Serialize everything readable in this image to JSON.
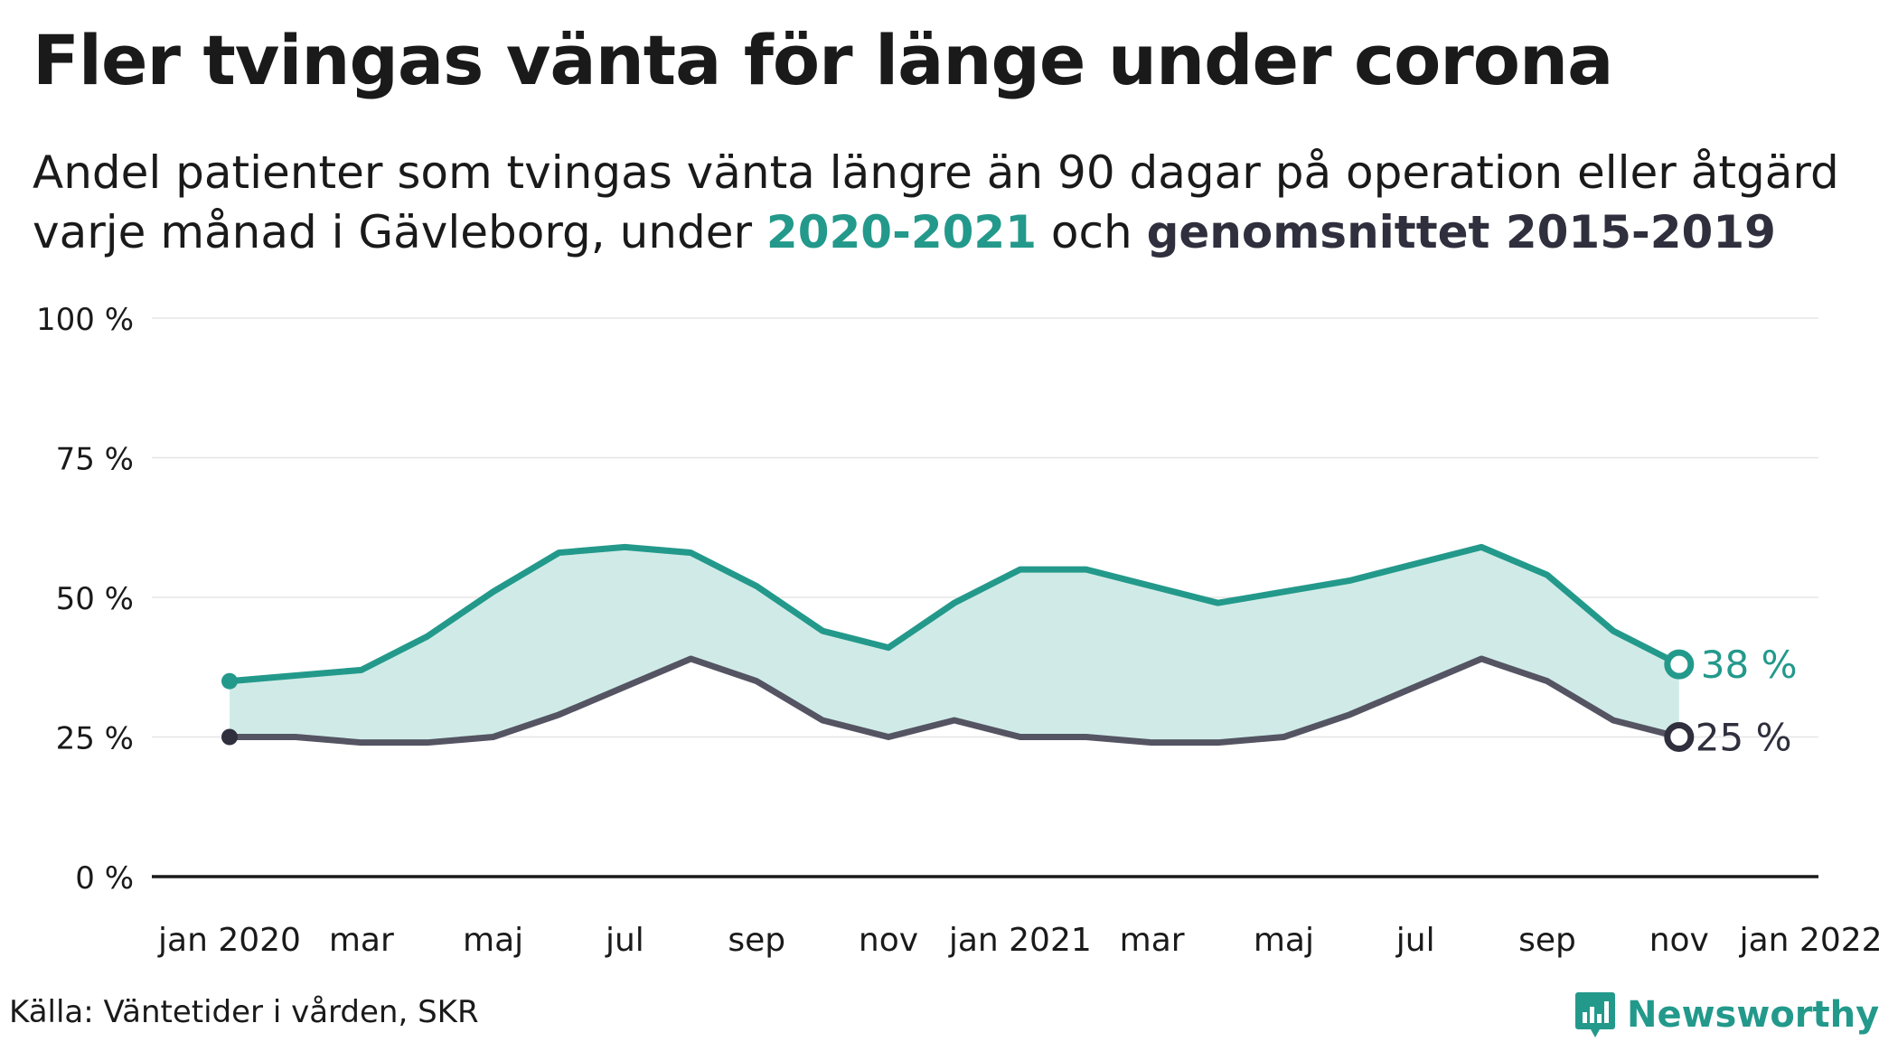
{
  "title": "Fler tvingas vänta för länge under corona",
  "subtitle": {
    "line1": "Andel patienter som tvingas vänta längre än 90 dagar på operation eller åtgärd",
    "line2_prefix": "varje månad i Gävleborg, under ",
    "line2_current": "2020-2021",
    "line2_mid": " och ",
    "line2_avg": "genomsnittet 2015-2019"
  },
  "colors": {
    "current": "#23998b",
    "average": "#545463",
    "band": "#d0ebe7",
    "grid": "#e6e6e6",
    "axis": "#1a1a1a"
  },
  "source": "Källa: Väntetider i vården, SKR",
  "brand": {
    "name": "Newsworthy",
    "icon": "newsworthy-logo-icon"
  },
  "chart_data": {
    "type": "line",
    "x_labels": [
      "jan 2020",
      "mar",
      "maj",
      "jul",
      "sep",
      "nov",
      "jan 2021",
      "mar",
      "maj",
      "jul",
      "sep",
      "nov",
      "jan 2022"
    ],
    "y_ticks": [
      "100 %",
      "75 %",
      "50 %",
      "25 %",
      "0 %"
    ],
    "ylim": [
      0,
      100
    ],
    "y_tick_values": [
      100,
      75,
      50,
      25,
      0
    ],
    "x_months": [
      "2020-01",
      "2020-02",
      "2020-03",
      "2020-04",
      "2020-05",
      "2020-06",
      "2020-07",
      "2020-08",
      "2020-09",
      "2020-10",
      "2020-11",
      "2020-12",
      "2021-01",
      "2021-02",
      "2021-03",
      "2021-04",
      "2021-05",
      "2021-06",
      "2021-07",
      "2021-08",
      "2021-09",
      "2021-10",
      "2021-11"
    ],
    "series": [
      {
        "name": "2020-2021",
        "values": [
          35,
          36,
          37,
          43,
          51,
          58,
          59,
          58,
          52,
          44,
          41,
          49,
          55,
          55,
          52,
          49,
          51,
          53,
          56,
          59,
          54,
          44,
          38
        ]
      },
      {
        "name": "genomsnittet 2015-2019",
        "values": [
          25,
          25,
          24,
          24,
          25,
          29,
          34,
          39,
          35,
          28,
          25,
          28,
          25,
          25,
          24,
          24,
          25,
          29,
          34,
          39,
          35,
          28,
          25
        ]
      }
    ],
    "end_labels": [
      "38 %",
      "25 %"
    ],
    "grid": true,
    "legend": "none"
  }
}
